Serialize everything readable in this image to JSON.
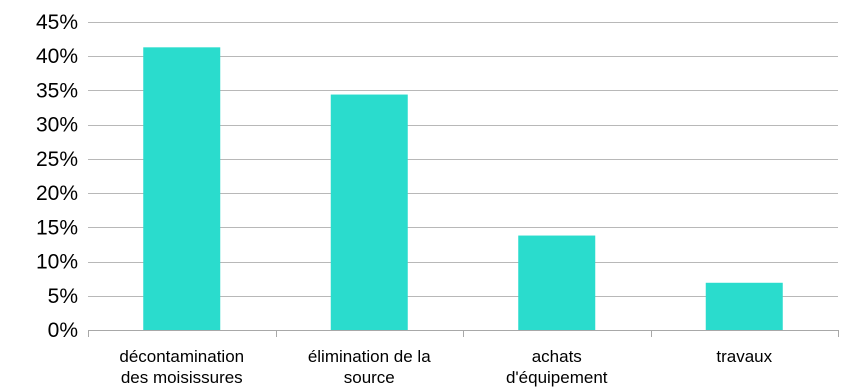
{
  "chart_data": {
    "type": "bar",
    "categories": [
      "décontamination des moisissures",
      "élimination de la source",
      "achats d'équipement",
      "travaux"
    ],
    "category_label_lines": [
      [
        "décontamination",
        "des moisissures"
      ],
      [
        "élimination de la",
        "source"
      ],
      [
        "achats",
        "d'équipement"
      ],
      [
        "travaux"
      ]
    ],
    "values": [
      41.3,
      34.4,
      13.8,
      6.9
    ],
    "value_unit": "%",
    "ylim": [
      0,
      45
    ],
    "y_ticks": [
      0,
      5,
      10,
      15,
      20,
      25,
      30,
      35,
      40,
      45
    ],
    "y_tick_labels": [
      "0%",
      "5%",
      "10%",
      "15%",
      "20%",
      "25%",
      "30%",
      "35%",
      "40%",
      "45%"
    ],
    "title": "",
    "xlabel": "",
    "ylabel": "",
    "grid": true,
    "legend": "none",
    "bar_color": "#2adccd"
  }
}
